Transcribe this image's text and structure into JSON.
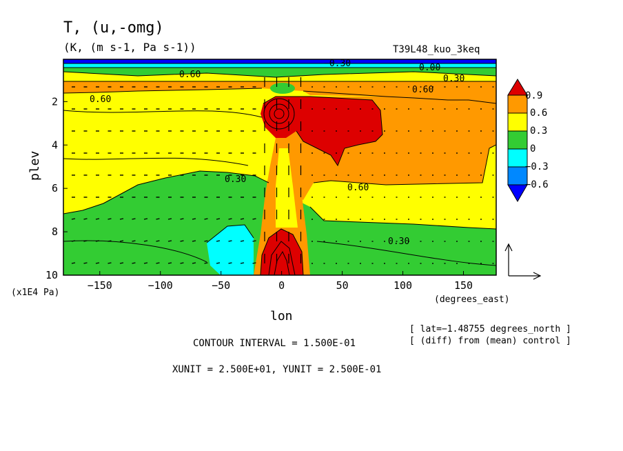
{
  "chart_data": {
    "type": "heatmap",
    "title": "T, (u,-omg)",
    "subtitle": "(K, (m s-1, Pa s-1))",
    "run_label": "T39L48_kuo_3keq",
    "xlabel": "lon",
    "xunit_label": "(degrees_east)",
    "ylabel": "plev",
    "yunit_label": "(x1E4 Pa)",
    "x_ticks": [
      -150,
      -100,
      -50,
      0,
      50,
      100,
      150
    ],
    "x_tick_labels": [
      "−150",
      "−100",
      "−50",
      "0",
      "50",
      "100",
      "150"
    ],
    "y_ticks": [
      2,
      4,
      6,
      8,
      10
    ],
    "xlim": [
      -180,
      177
    ],
    "ylim": [
      10,
      0.05
    ],
    "colorbar": {
      "labels": [
        "0.9",
        "0.6",
        "0.3",
        "0",
        "−0.3",
        "−0.6"
      ],
      "colors": [
        "#dd0000",
        "#ff9900",
        "#ffff00",
        "#33cc33",
        "#00ffff",
        "#0088ff",
        "#0000ff"
      ]
    },
    "contour_labels": [
      "0.60",
      "0.60",
      "0.60",
      "0.60",
      "0.30",
      "0.30",
      "0.30",
      "0.00",
      "−0.30"
    ],
    "regions": [
      {
        "level": "0.6 to 0.9",
        "lon_range": [
          -180,
          177
        ],
        "plev_range": [
          0.8,
          1.9
        ]
      },
      {
        "level": "0.3 to 0.6",
        "lon_range": [
          -180,
          177
        ],
        "plev_range": [
          1.9,
          6.5
        ]
      },
      {
        "level": "0 to 0.3",
        "lon_range": [
          -180,
          177
        ],
        "plev_range": [
          6.5,
          10
        ]
      },
      {
        "level": "0.9+",
        "lon_range": [
          -15,
          80
        ],
        "plev_range": [
          2,
          4.5
        ]
      },
      {
        "level": "0.9+",
        "lon_range": [
          -20,
          20
        ],
        "plev_range": [
          8,
          10
        ]
      },
      {
        "level": "-0.3 to 0",
        "lon_range": [
          -55,
          -25
        ],
        "plev_range": [
          8.5,
          10
        ]
      },
      {
        "level": "0.6 to 0.9",
        "lon_range": [
          10,
          177
        ],
        "plev_range": [
          1.9,
          6
        ]
      }
    ],
    "vectors": "(u, -omg) wind vectors overlaid",
    "footer": {
      "contour_interval": "CONTOUR INTERVAL = 1.500E-01",
      "units": "XUNIT = 2.500E+01, YUNIT = 2.500E-01",
      "lat_note": "[ lat=−1.48755 degrees_north ]",
      "diff_note": "[ (diff) from (mean) control ]"
    }
  }
}
